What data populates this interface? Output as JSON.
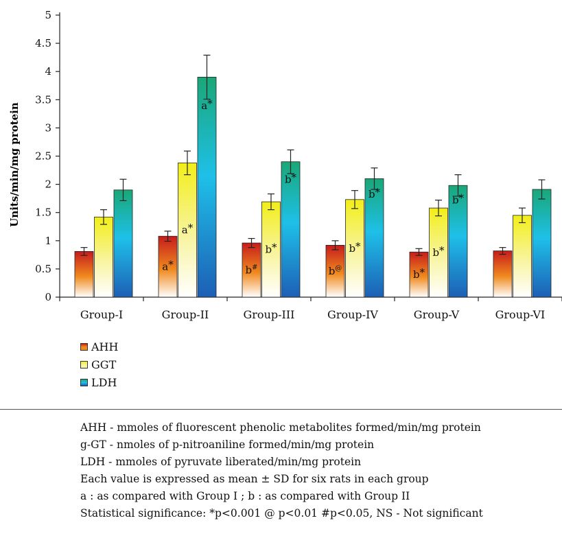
{
  "chart_data": {
    "type": "bar",
    "categories": [
      "Group-I",
      "Group-II",
      "Group-III",
      "Group-IV",
      "Group-V",
      "Group-VI"
    ],
    "ylabel": "Units/min/mg protein",
    "ylim": [
      0,
      5
    ],
    "yticks": [
      "0",
      "0.5",
      "1",
      "1.5",
      "2",
      "2.5",
      "3",
      "3.5",
      "4",
      "4.5",
      "5"
    ],
    "series": [
      {
        "name": "AHH",
        "colors": [
          "#c61c1c",
          "#f08a1e",
          "#ffffff"
        ],
        "values": [
          0.81,
          1.08,
          0.96,
          0.92,
          0.8,
          0.82
        ],
        "errors": [
          0.07,
          0.09,
          0.08,
          0.08,
          0.06,
          0.06
        ],
        "annotations": [
          "",
          "a*",
          "b#",
          "b@",
          "b*",
          ""
        ]
      },
      {
        "name": "GGT",
        "colors": [
          "#f2ee1a",
          "#f8f4a0",
          "#ffffff"
        ],
        "values": [
          1.42,
          2.38,
          1.69,
          1.73,
          1.58,
          1.45
        ],
        "errors": [
          0.13,
          0.21,
          0.14,
          0.16,
          0.14,
          0.13
        ],
        "annotations": [
          "",
          "a*",
          "b*",
          "b*",
          "b*",
          ""
        ]
      },
      {
        "name": "LDH",
        "colors": [
          "#1aa777",
          "#1ec0e8",
          "#1d5fb5"
        ],
        "values": [
          1.9,
          3.9,
          2.4,
          2.1,
          1.98,
          1.91
        ],
        "errors": [
          0.19,
          0.39,
          0.21,
          0.19,
          0.19,
          0.17
        ],
        "annotations": [
          "",
          "a*",
          "b*",
          "b*",
          "b*",
          ""
        ]
      }
    ],
    "legend_position": "bottom-left"
  },
  "notes": [
    "AHH - mmoles of fluorescent phenolic metabolites formed/min/mg protein",
    "g-GT - nmoles of p-nitroaniline formed/min/mg protein",
    "LDH - mmoles of pyruvate liberated/min/mg protein",
    "Each value is expressed as mean ± SD for six rats in each group",
    "a : as compared with Group I ; b : as compared with Group II",
    "Statistical significance: *p<0.001 @ p<0.01 #p<0.05, NS - Not significant"
  ]
}
